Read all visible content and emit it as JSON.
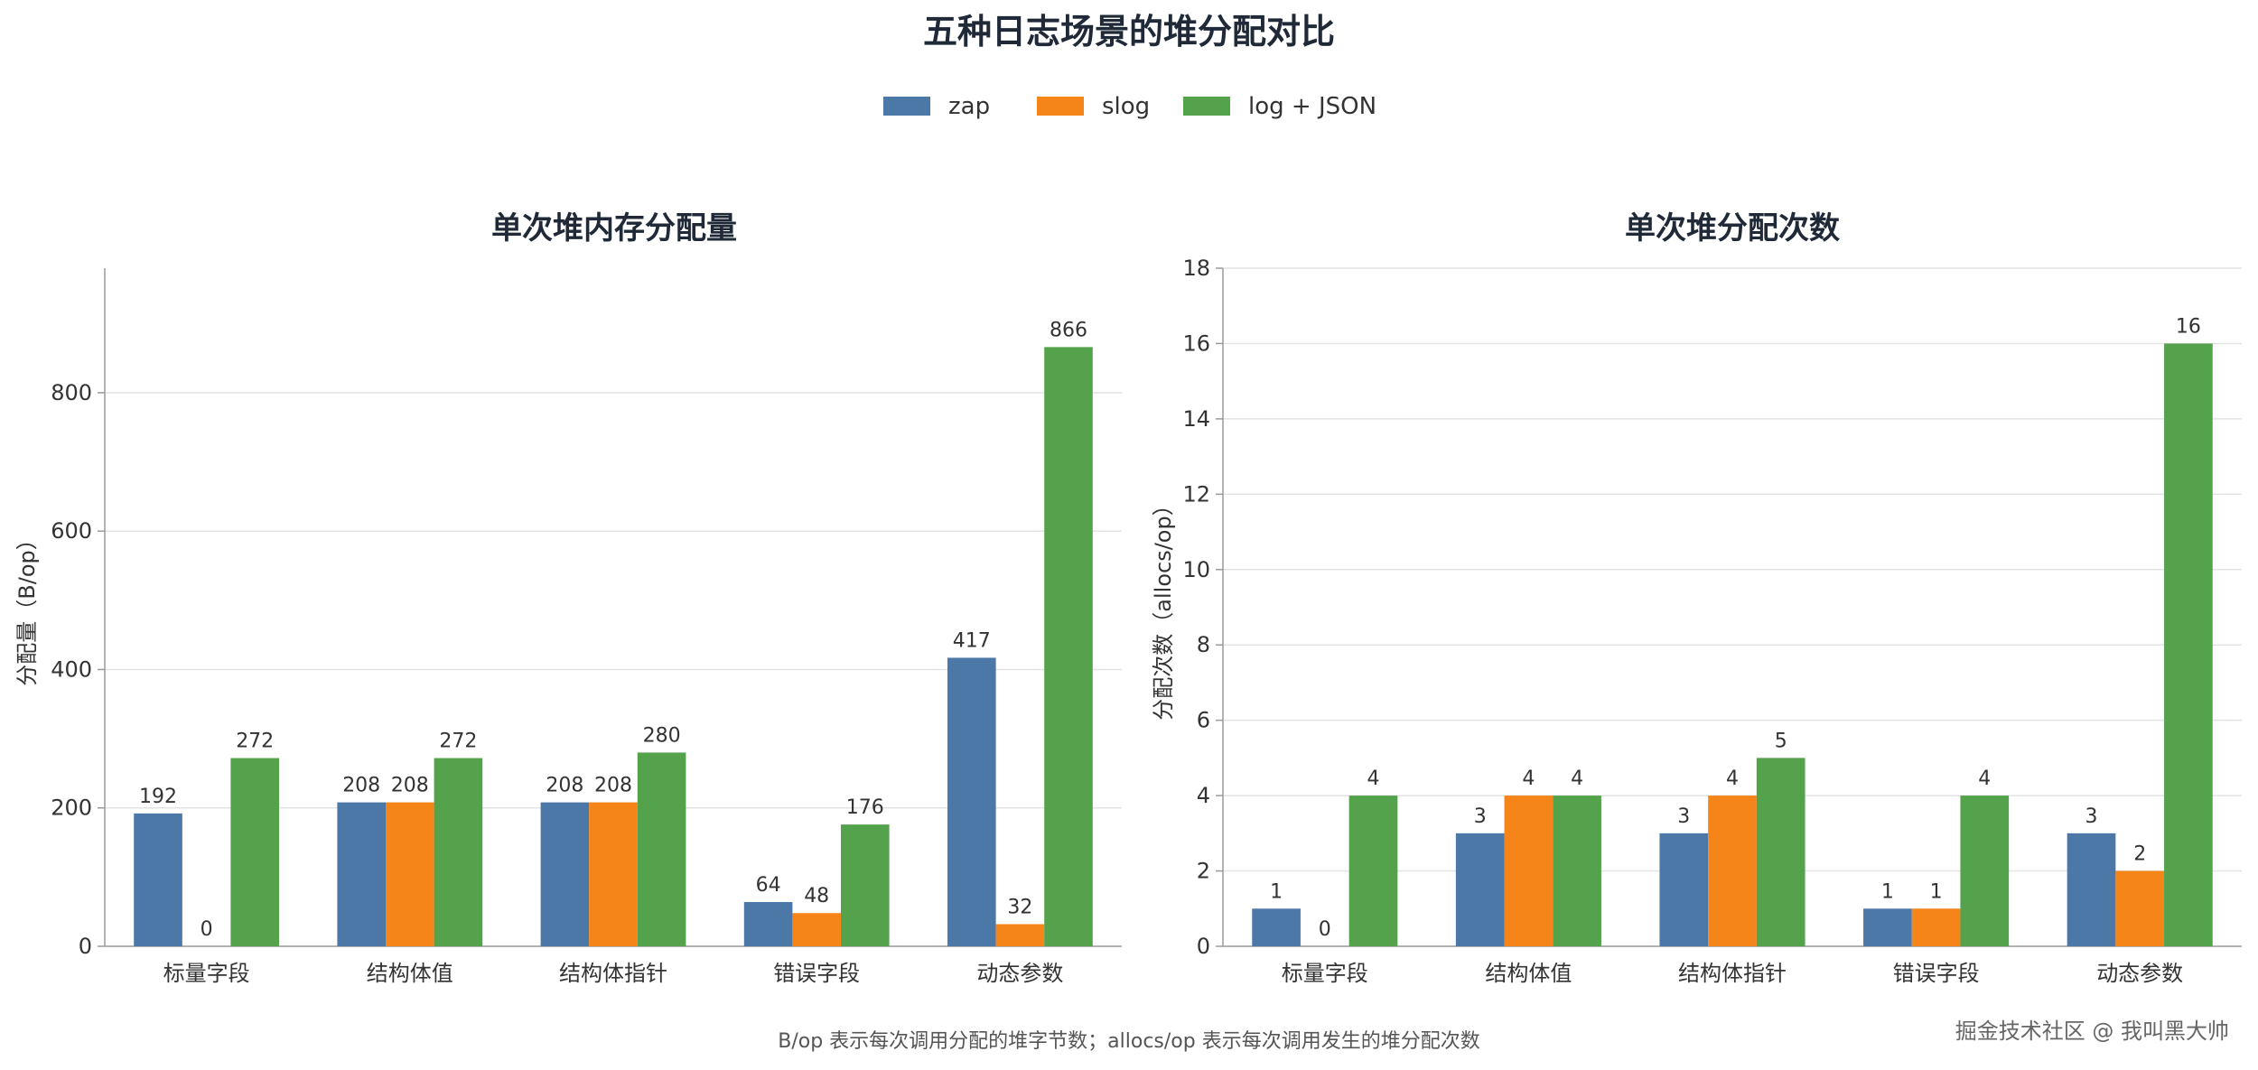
{
  "figure": {
    "title": "五种日志场景的堆分配对比",
    "footnote": "B/op 表示每次调用分配的堆字节数；allocs/op 表示每次调用发生的堆分配次数",
    "watermark": "掘金技术社区 @ 我叫黑大帅"
  },
  "legend": [
    {
      "name": "zap",
      "color": "#4c78a8"
    },
    {
      "name": "slog",
      "color": "#f58518"
    },
    {
      "name": "log + JSON",
      "color": "#54a24b"
    }
  ],
  "chart_data": [
    {
      "type": "bar",
      "title": "单次堆内存分配量",
      "ylabel": "分配量（B/op）",
      "ylim": [
        0,
        980
      ],
      "yticks": [
        0,
        200,
        400,
        600,
        800
      ],
      "grid": true,
      "categories": [
        "标量字段",
        "结构体值",
        "结构体指针",
        "错误字段",
        "动态参数"
      ],
      "series": [
        {
          "name": "zap",
          "values": [
            192,
            208,
            208,
            64,
            417
          ]
        },
        {
          "name": "slog",
          "values": [
            0,
            208,
            208,
            48,
            32
          ]
        },
        {
          "name": "log + JSON",
          "values": [
            272,
            272,
            280,
            176,
            866
          ]
        }
      ]
    },
    {
      "type": "bar",
      "title": "单次堆分配次数",
      "ylabel": "分配次数（allocs/op）",
      "ylim": [
        0,
        18
      ],
      "yticks": [
        0,
        2,
        4,
        6,
        8,
        10,
        12,
        14,
        16,
        18
      ],
      "grid": true,
      "categories": [
        "标量字段",
        "结构体值",
        "结构体指针",
        "错误字段",
        "动态参数"
      ],
      "series": [
        {
          "name": "zap",
          "values": [
            1,
            3,
            3,
            1,
            3
          ]
        },
        {
          "name": "slog",
          "values": [
            0,
            4,
            4,
            1,
            2
          ]
        },
        {
          "name": "log + JSON",
          "values": [
            4,
            4,
            5,
            4,
            16
          ]
        }
      ]
    }
  ]
}
